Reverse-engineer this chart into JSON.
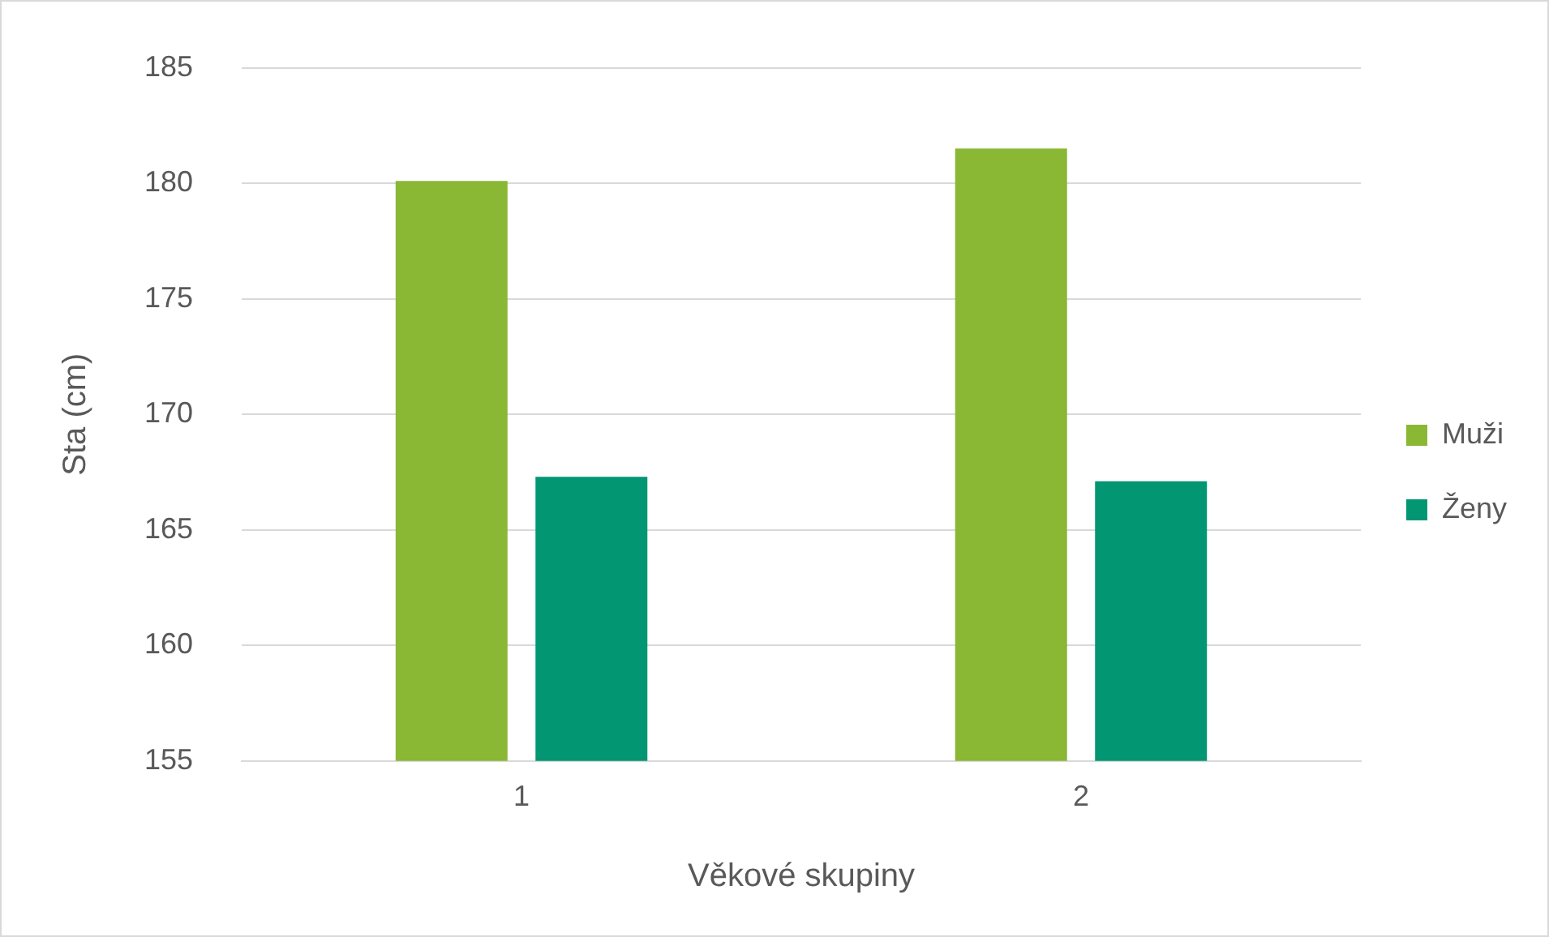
{
  "chart_data": {
    "type": "bar",
    "xlabel": "Věkové skupiny",
    "ylabel": "Sta (cm)",
    "categories": [
      "1",
      "2"
    ],
    "series": [
      {
        "name": "Muži",
        "color": "#8ab734",
        "values": [
          180.1,
          181.5
        ]
      },
      {
        "name": "Ženy",
        "color": "#029673",
        "values": [
          167.3,
          167.1
        ]
      }
    ],
    "ylim": [
      155,
      185
    ],
    "yticks": [
      155,
      160,
      165,
      170,
      175,
      180,
      185
    ],
    "grid": "y",
    "legend": "right"
  }
}
